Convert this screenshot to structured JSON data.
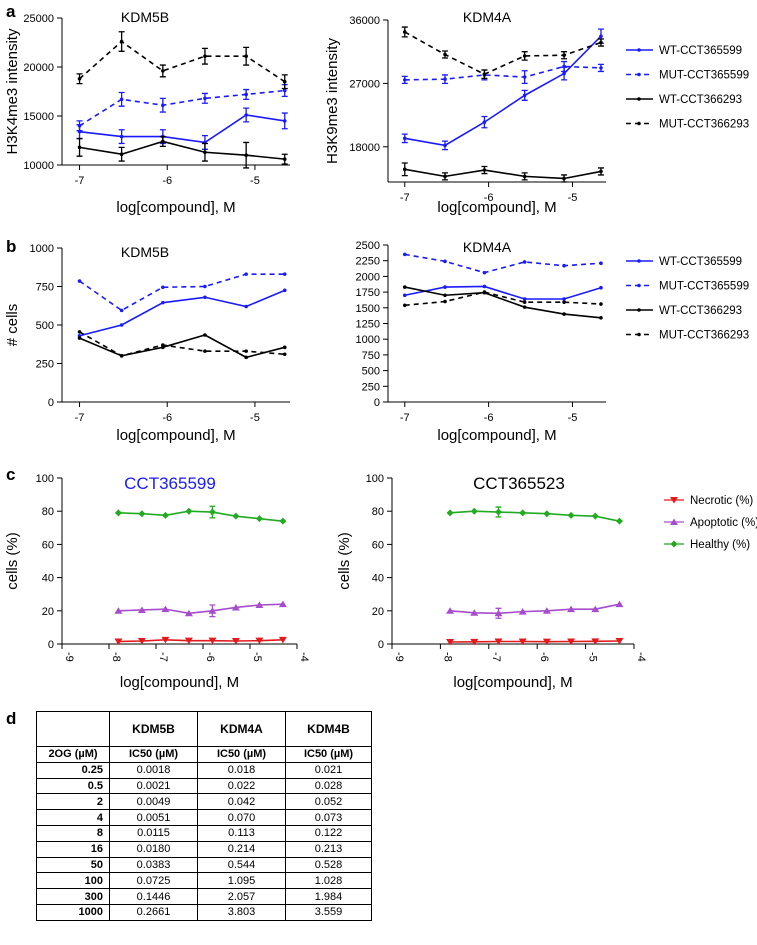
{
  "panels": [
    {
      "letter": "a"
    },
    {
      "letter": "b"
    },
    {
      "letter": "c"
    },
    {
      "letter": "d"
    }
  ],
  "chart_data": [
    {
      "id": "a-kdm5b",
      "type": "line",
      "title": "KDM5B",
      "xlabel": "log[compound], M",
      "ylabel": "H3K4me3 intensity",
      "xlim": [
        -7.2,
        -4.6
      ],
      "ylim": [
        10000,
        25000
      ],
      "xticks": [
        -7,
        -6,
        -5
      ],
      "yticks": [
        10000,
        15000,
        20000,
        25000
      ],
      "errorbars": true,
      "markers": true,
      "series": [
        {
          "name": "WT-CCT365599",
          "x": [
            -7,
            -6.52,
            -6.05,
            -5.57,
            -5.1,
            -4.66
          ],
          "y": [
            13400,
            12900,
            12900,
            12300,
            15100,
            14500
          ],
          "err": [
            700,
            700,
            700,
            700,
            700,
            800
          ],
          "color": "#1a1aff",
          "dash": "solid"
        },
        {
          "name": "MUT-CCT365599",
          "x": [
            -7,
            -6.52,
            -6.05,
            -5.57,
            -5.1,
            -4.66
          ],
          "y": [
            14000,
            16700,
            16100,
            16800,
            17200,
            17600
          ],
          "err": [
            500,
            700,
            700,
            500,
            500,
            600
          ],
          "color": "#1a1aff",
          "dash": "dashed"
        },
        {
          "name": "WT-CCT366293",
          "x": [
            -7,
            -6.52,
            -6.05,
            -5.57,
            -5.1,
            -4.66
          ],
          "y": [
            11800,
            11100,
            12400,
            11300,
            11000,
            10600
          ],
          "err": [
            900,
            700,
            500,
            900,
            1300,
            500
          ],
          "color": "#000000",
          "dash": "solid"
        },
        {
          "name": "MUT-CCT366293",
          "x": [
            -7,
            -6.52,
            -6.05,
            -5.57,
            -5.1,
            -4.66
          ],
          "y": [
            18800,
            22600,
            19600,
            21100,
            21100,
            18500
          ],
          "err": [
            500,
            1000,
            600,
            800,
            900,
            700
          ],
          "color": "#000000",
          "dash": "dashed"
        }
      ]
    },
    {
      "id": "a-kdm4a",
      "type": "line",
      "title": "KDM4A",
      "xlabel": "log[compound], M",
      "ylabel": "H3K9me3 intensity",
      "xlim": [
        -7.2,
        -4.6
      ],
      "ylim": [
        13000,
        36000
      ],
      "xticks": [
        -7,
        -6,
        -5
      ],
      "yticks": [
        18000,
        27000,
        36000
      ],
      "errorbars": true,
      "markers": true,
      "legend": "right",
      "series": [
        {
          "name": "WT-CCT365599",
          "x": [
            -7,
            -6.52,
            -6.05,
            -5.57,
            -5.1,
            -4.66
          ],
          "y": [
            19200,
            18200,
            21500,
            25300,
            28400,
            33700
          ],
          "err": [
            600,
            600,
            800,
            700,
            900,
            1000
          ],
          "color": "#1a1aff",
          "dash": "solid"
        },
        {
          "name": "MUT-CCT365599",
          "x": [
            -7,
            -6.52,
            -6.05,
            -5.57,
            -5.1,
            -4.66
          ],
          "y": [
            27500,
            27600,
            28200,
            27900,
            29400,
            29200
          ],
          "err": [
            500,
            600,
            700,
            900,
            700,
            500
          ],
          "color": "#1a1aff",
          "dash": "dashed"
        },
        {
          "name": "WT-CCT366293",
          "x": [
            -7,
            -6.52,
            -6.05,
            -5.57,
            -5.1,
            -4.66
          ],
          "y": [
            14800,
            13800,
            14700,
            13800,
            13500,
            14500
          ],
          "err": [
            900,
            500,
            500,
            500,
            500,
            500
          ],
          "color": "#000000",
          "dash": "solid"
        },
        {
          "name": "MUT-CCT366293",
          "x": [
            -7,
            -6.52,
            -6.05,
            -5.57,
            -5.1,
            -4.66
          ],
          "y": [
            34300,
            31100,
            28300,
            30900,
            31000,
            32800
          ],
          "err": [
            700,
            500,
            600,
            600,
            500,
            500
          ],
          "color": "#000000",
          "dash": "dashed"
        }
      ]
    },
    {
      "id": "b-kdm5b",
      "type": "line",
      "title": "KDM5B",
      "xlabel": "log[compound], M",
      "ylabel": "# cells",
      "xlim": [
        -7.2,
        -4.6
      ],
      "ylim": [
        0,
        1000
      ],
      "xticks": [
        -7,
        -6,
        -5
      ],
      "yticks": [
        0,
        250,
        500,
        750,
        1000
      ],
      "errorbars": false,
      "markers": true,
      "series": [
        {
          "name": "WT-CCT365599",
          "x": [
            -7,
            -6.52,
            -6.05,
            -5.57,
            -5.1,
            -4.66
          ],
          "y": [
            430,
            500,
            645,
            680,
            620,
            725
          ],
          "color": "#1a1aff",
          "dash": "solid"
        },
        {
          "name": "MUT-CCT365599",
          "x": [
            -7,
            -6.52,
            -6.05,
            -5.57,
            -5.1,
            -4.66
          ],
          "y": [
            785,
            595,
            745,
            750,
            830,
            830
          ],
          "color": "#1a1aff",
          "dash": "dashed"
        },
        {
          "name": "WT-CCT366293",
          "x": [
            -7,
            -6.52,
            -6.05,
            -5.57,
            -5.1,
            -4.66
          ],
          "y": [
            415,
            300,
            355,
            435,
            290,
            355
          ],
          "color": "#000000",
          "dash": "solid"
        },
        {
          "name": "MUT-CCT366293",
          "x": [
            -7,
            -6.52,
            -6.05,
            -5.57,
            -5.1,
            -4.66
          ],
          "y": [
            455,
            300,
            370,
            330,
            330,
            310
          ],
          "color": "#000000",
          "dash": "dashed"
        }
      ]
    },
    {
      "id": "b-kdm4a",
      "type": "line",
      "title": "KDM4A",
      "xlabel": "log[compound], M",
      "ylabel": "",
      "xlim": [
        -7.2,
        -4.6
      ],
      "ylim": [
        0,
        2500
      ],
      "xticks": [
        -7,
        -6,
        -5
      ],
      "yticks": [
        0,
        250,
        500,
        750,
        1000,
        1250,
        1500,
        1750,
        2000,
        2250,
        2500
      ],
      "errorbars": false,
      "markers": true,
      "legend": "right",
      "series": [
        {
          "name": "WT-CCT365599",
          "x": [
            -7,
            -6.52,
            -6.05,
            -5.57,
            -5.1,
            -4.66
          ],
          "y": [
            1700,
            1830,
            1840,
            1640,
            1640,
            1820
          ],
          "color": "#1a1aff",
          "dash": "solid"
        },
        {
          "name": "MUT-CCT365599",
          "x": [
            -7,
            -6.52,
            -6.05,
            -5.57,
            -5.1,
            -4.66
          ],
          "y": [
            2350,
            2240,
            2060,
            2230,
            2170,
            2210
          ],
          "color": "#1a1aff",
          "dash": "dashed"
        },
        {
          "name": "WT-CCT366293",
          "x": [
            -7,
            -6.52,
            -6.05,
            -5.57,
            -5.1,
            -4.66
          ],
          "y": [
            1830,
            1700,
            1740,
            1510,
            1400,
            1340
          ],
          "color": "#000000",
          "dash": "solid"
        },
        {
          "name": "MUT-CCT366293",
          "x": [
            -7,
            -6.52,
            -6.05,
            -5.57,
            -5.1,
            -4.66
          ],
          "y": [
            1540,
            1600,
            1750,
            1590,
            1590,
            1560
          ],
          "color": "#000000",
          "dash": "dashed"
        }
      ]
    },
    {
      "id": "c-599",
      "type": "line",
      "title": "CCT365599",
      "title_color": "#1a1aff",
      "xlabel": "log[compound], M",
      "ylabel": "cells (%)",
      "xlim": [
        -9,
        -4
      ],
      "ylim": [
        0,
        100
      ],
      "xticks": [
        -9,
        -8,
        -7,
        -6,
        -5,
        -4
      ],
      "yticks": [
        0,
        20,
        40,
        60,
        80,
        100
      ],
      "xtick_rotation": 90,
      "errorbars": true,
      "markers": true,
      "series": [
        {
          "name": "Necrotic (%)",
          "marker": "triangle-down",
          "x": [
            -7.8,
            -7.3,
            -6.8,
            -6.3,
            -5.8,
            -5.3,
            -4.8,
            -4.3
          ],
          "y": [
            1.5,
            1.8,
            2.5,
            2.0,
            2.0,
            1.8,
            2.0,
            2.5
          ],
          "err": [
            0,
            0,
            0,
            0,
            0,
            0,
            0,
            0
          ],
          "color": "#e31a1c",
          "dash": "solid"
        },
        {
          "name": "Apoptotic (%)",
          "marker": "triangle-up",
          "x": [
            -7.8,
            -7.3,
            -6.8,
            -6.3,
            -5.8,
            -5.3,
            -4.8,
            -4.3
          ],
          "y": [
            20,
            20.5,
            21,
            18.5,
            20,
            22,
            23.5,
            24
          ],
          "err": [
            0,
            0,
            0,
            0,
            3.5,
            0,
            0,
            0
          ],
          "color": "#a64dcc",
          "dash": "solid"
        },
        {
          "name": "Healthy (%)",
          "marker": "diamond",
          "x": [
            -7.8,
            -7.3,
            -6.8,
            -6.3,
            -5.8,
            -5.3,
            -4.8,
            -4.3
          ],
          "y": [
            79,
            78.5,
            77.5,
            80,
            79.5,
            77,
            75.5,
            74
          ],
          "err": [
            0,
            0,
            0,
            0,
            3.5,
            0,
            0,
            0
          ],
          "color": "#22aa22",
          "dash": "solid"
        }
      ]
    },
    {
      "id": "c-523",
      "type": "line",
      "title": "CCT365523",
      "title_color": "#000000",
      "xlabel": "log[compound], M",
      "ylabel": "cells (%)",
      "xlim": [
        -9,
        -4
      ],
      "ylim": [
        0,
        100
      ],
      "xticks": [
        -9,
        -8,
        -7,
        -6,
        -5,
        -4
      ],
      "yticks": [
        0,
        20,
        40,
        60,
        80,
        100
      ],
      "xtick_rotation": 90,
      "errorbars": true,
      "markers": true,
      "legend": "right",
      "series": [
        {
          "name": "Necrotic (%)",
          "marker": "triangle-down",
          "x": [
            -7.8,
            -7.3,
            -6.8,
            -6.3,
            -5.8,
            -5.3,
            -4.8,
            -4.3
          ],
          "y": [
            1.2,
            1.3,
            1.5,
            1.5,
            1.4,
            1.5,
            1.6,
            1.8
          ],
          "err": [
            0,
            0,
            0,
            0,
            0,
            0,
            0,
            0
          ],
          "color": "#e31a1c",
          "dash": "solid"
        },
        {
          "name": "Apoptotic (%)",
          "marker": "triangle-up",
          "x": [
            -7.8,
            -7.3,
            -6.8,
            -6.3,
            -5.8,
            -5.3,
            -4.8,
            -4.3
          ],
          "y": [
            20,
            18.8,
            18.5,
            19.5,
            20,
            21,
            21,
            24
          ],
          "err": [
            0,
            0,
            3.0,
            0,
            0,
            0,
            0,
            0
          ],
          "color": "#a64dcc",
          "dash": "solid"
        },
        {
          "name": "Healthy (%)",
          "marker": "diamond",
          "x": [
            -7.8,
            -7.3,
            -6.8,
            -6.3,
            -5.8,
            -5.3,
            -4.8,
            -4.3
          ],
          "y": [
            79,
            80,
            79.5,
            79,
            78.5,
            77.5,
            77,
            74
          ],
          "err": [
            0,
            0,
            3.0,
            0,
            0,
            0,
            0,
            0
          ],
          "color": "#22aa22",
          "dash": "solid"
        }
      ]
    },
    {
      "id": "d-table",
      "type": "table",
      "columns": [
        "",
        "KDM5B",
        "KDM4A",
        "KDM4B"
      ],
      "subheader": [
        "2OG (µM)",
        "IC50 (µM)",
        "IC50 (µM)",
        "IC50 (µM)"
      ],
      "rows": [
        [
          "0.25",
          "0.0018",
          "0.018",
          "0.021"
        ],
        [
          "0.5",
          "0.0021",
          "0.022",
          "0.028"
        ],
        [
          "2",
          "0.0049",
          "0.042",
          "0.052"
        ],
        [
          "4",
          "0.0051",
          "0.070",
          "0.073"
        ],
        [
          "8",
          "0.0115",
          "0.113",
          "0.122"
        ],
        [
          "16",
          "0.0180",
          "0.214",
          "0.213"
        ],
        [
          "50",
          "0.0383",
          "0.544",
          "0.528"
        ],
        [
          "100",
          "0.0725",
          "1.095",
          "1.028"
        ],
        [
          "300",
          "0.1446",
          "2.057",
          "1.984"
        ],
        [
          "1000",
          "0.2661",
          "3.803",
          "3.559"
        ]
      ]
    }
  ]
}
